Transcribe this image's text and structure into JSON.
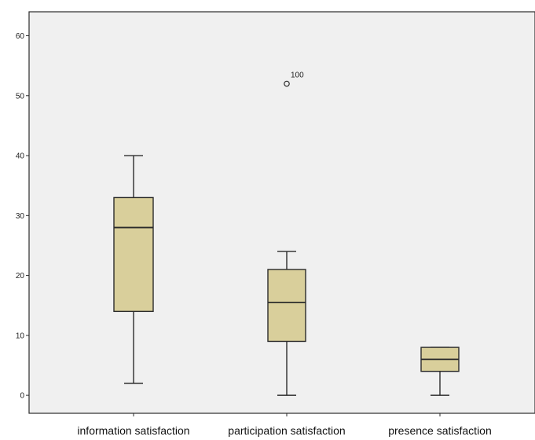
{
  "chart_data": {
    "type": "box",
    "categories": [
      "information satisfaction",
      "participation satisfaction",
      "presence satisfaction"
    ],
    "boxes": [
      {
        "category": "information satisfaction",
        "whisker_low": 2,
        "q1": 14,
        "median": 28,
        "q3": 33,
        "whisker_high": 40,
        "outliers": []
      },
      {
        "category": "participation satisfaction",
        "whisker_low": 0,
        "q1": 9,
        "median": 15.5,
        "q3": 21,
        "whisker_high": 24,
        "outliers": [
          {
            "value": 52,
            "label": "100"
          }
        ]
      },
      {
        "category": "presence satisfaction",
        "whisker_low": 0,
        "q1": 4,
        "median": 6,
        "q3": 8,
        "whisker_high": 8,
        "outliers": []
      }
    ],
    "yticks": [
      "0",
      "10",
      "20",
      "30",
      "40",
      "50",
      "60"
    ],
    "ylim": [
      -3,
      64
    ],
    "grid": false,
    "title": "",
    "xlabel": "",
    "ylabel": "",
    "colors": {
      "plot_background": "#f0f0f0",
      "box_fill": "#d9cf9b",
      "stroke": "#2b2b2b"
    }
  }
}
